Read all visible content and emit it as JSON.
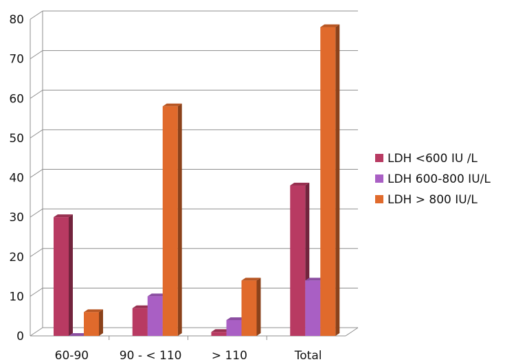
{
  "chart_data": {
    "type": "bar",
    "title": "",
    "xlabel": "",
    "ylabel": "",
    "categories": [
      "60-90",
      "90 - < 110",
      "> 110",
      "Total"
    ],
    "series": [
      {
        "name": "LDH <600 IU /L",
        "values": [
          30,
          7,
          1,
          38
        ],
        "color": "#b83a62"
      },
      {
        "name": "LDH 600-800 IU/L",
        "values": [
          0,
          10,
          4,
          14
        ],
        "color": "#a95fc4"
      },
      {
        "name": "LDH > 800 IU/L",
        "values": [
          6,
          58,
          14,
          78
        ],
        "color": "#e06a2c"
      }
    ],
    "ylim": [
      0,
      80
    ],
    "yticks": [
      0,
      10,
      20,
      30,
      40,
      50,
      60,
      70,
      80
    ],
    "grid": true,
    "legend_position": "right",
    "style": "3d-column"
  }
}
